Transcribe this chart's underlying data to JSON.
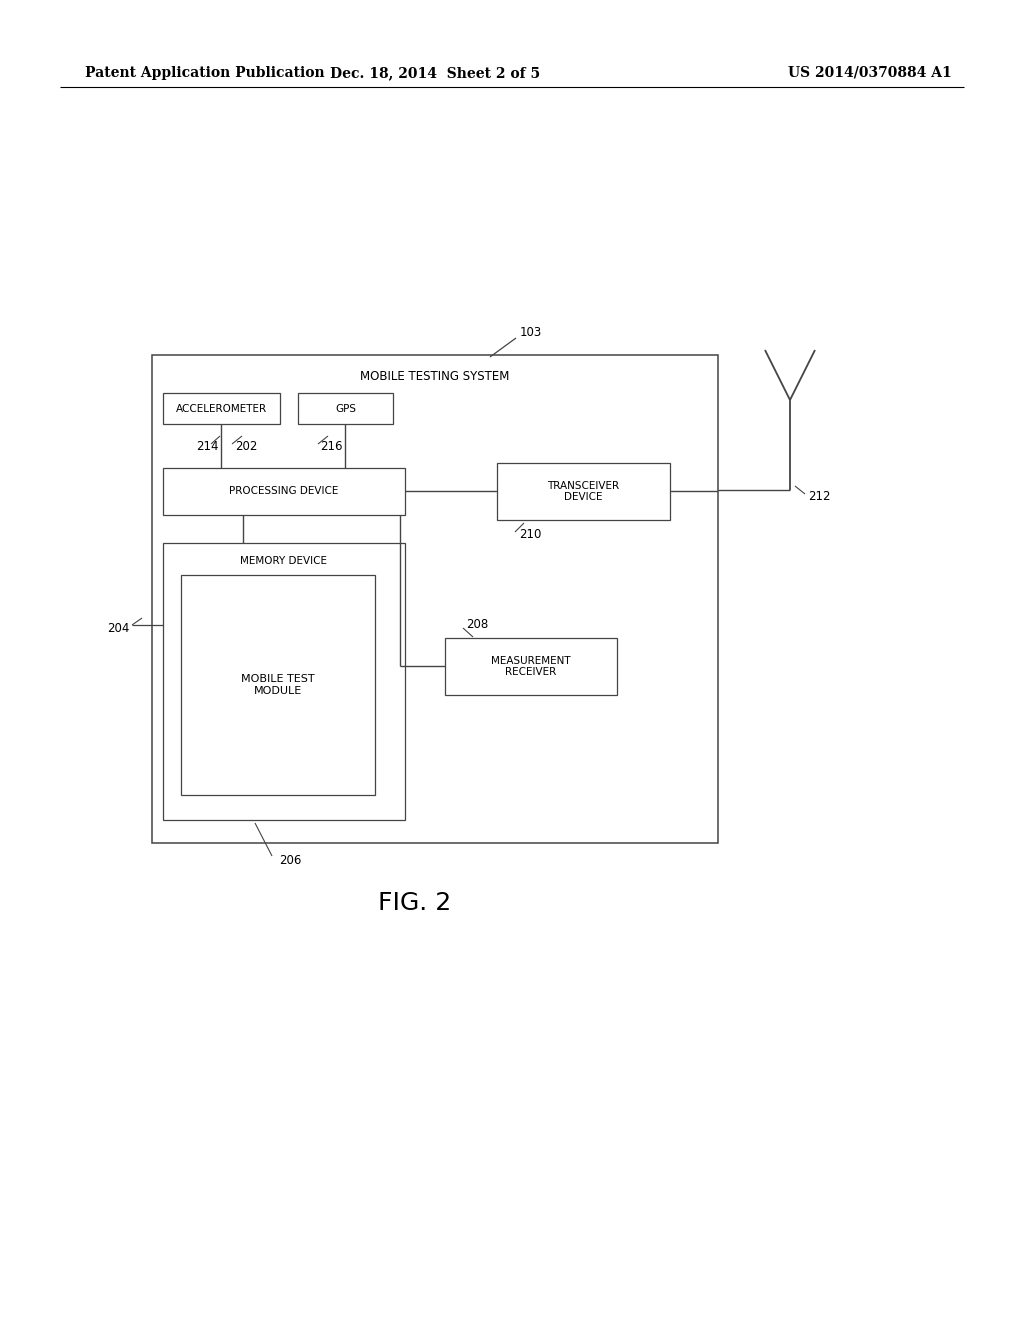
{
  "background_color": "#ffffff",
  "header_left": "Patent Application Publication",
  "header_mid": "Dec. 18, 2014  Sheet 2 of 5",
  "header_right": "US 2014/0370884 A1",
  "fig_label": "FIG. 2",
  "outer_box_label": "MOBILE TESTING SYSTEM",
  "boxes": {
    "accelerometer": "ACCELEROMETER",
    "gps": "GPS",
    "processing": "PROCESSING DEVICE",
    "memory": "MEMORY DEVICE",
    "mobile_test": "MOBILE TEST\nMODULE",
    "transceiver": "TRANSCEIVER\nDEVICE",
    "measurement": "MEASUREMENT\nRECEIVER"
  },
  "refs": {
    "r103": "103",
    "r214": "214",
    "r202": "202",
    "r216": "216",
    "r204": "204",
    "r206": "206",
    "r210": "210",
    "r208": "208",
    "r212": "212"
  }
}
